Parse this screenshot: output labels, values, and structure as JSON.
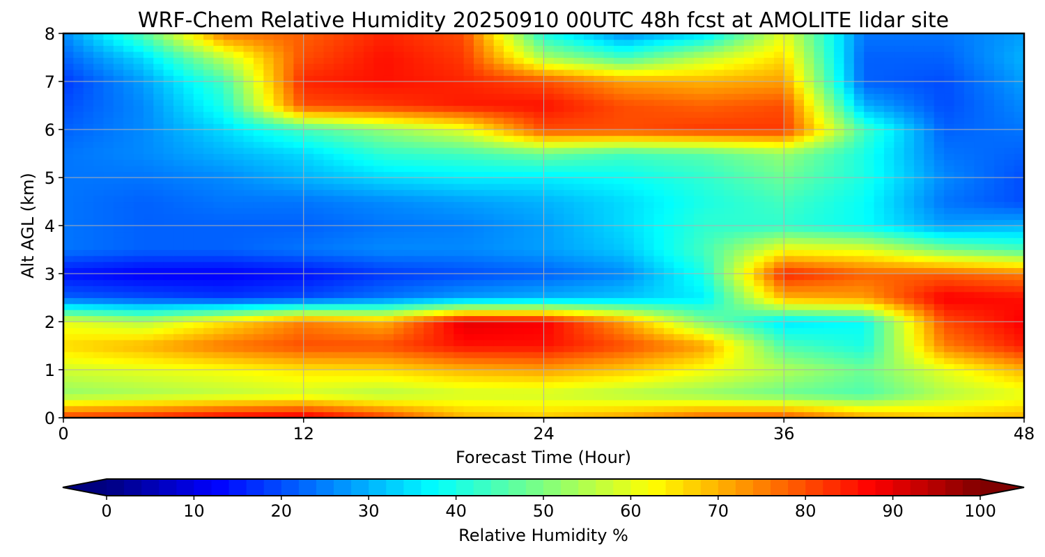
{
  "chart_data": {
    "type": "heatmap",
    "title": "WRF-Chem Relative Humidity 20250910 00UTC 48h fcst at AMOLITE lidar site",
    "xlabel": "Forecast Time (Hour)",
    "ylabel": "Alt AGL (km)",
    "xlim": [
      0,
      48
    ],
    "ylim": [
      0,
      8
    ],
    "x_ticks": [
      "0",
      "12",
      "24",
      "36",
      "48"
    ],
    "y_ticks": [
      "0",
      "1",
      "2",
      "3",
      "4",
      "5",
      "6",
      "7",
      "8"
    ],
    "grid": true,
    "colorbar": {
      "label": "Relative Humidity %",
      "range": [
        0,
        100
      ],
      "ticks": [
        "0",
        "10",
        "20",
        "30",
        "40",
        "50",
        "60",
        "70",
        "80",
        "90",
        "100"
      ],
      "colormap": "jet",
      "extend": "both"
    },
    "x": [
      0,
      4,
      8,
      12,
      16,
      20,
      24,
      28,
      32,
      36,
      40,
      44,
      48
    ],
    "y": [
      0,
      0.5,
      1,
      1.5,
      2,
      2.5,
      3,
      3.5,
      4,
      4.5,
      5,
      5.5,
      6,
      6.5,
      7,
      7.5,
      8
    ],
    "z": [
      [
        82,
        84,
        88,
        90,
        82,
        70,
        68,
        72,
        78,
        80,
        72,
        68,
        70
      ],
      [
        52,
        54,
        56,
        58,
        55,
        58,
        58,
        55,
        52,
        48,
        45,
        55,
        60
      ],
      [
        58,
        60,
        62,
        65,
        66,
        70,
        72,
        68,
        62,
        55,
        48,
        60,
        70
      ],
      [
        66,
        70,
        76,
        80,
        80,
        86,
        86,
        80,
        72,
        45,
        40,
        75,
        85
      ],
      [
        60,
        55,
        65,
        75,
        70,
        90,
        88,
        72,
        50,
        35,
        38,
        80,
        88
      ],
      [
        22,
        20,
        18,
        20,
        24,
        28,
        30,
        32,
        36,
        70,
        72,
        88,
        86
      ],
      [
        14,
        12,
        12,
        14,
        18,
        20,
        22,
        26,
        40,
        84,
        78,
        78,
        75
      ],
      [
        24,
        22,
        22,
        24,
        26,
        26,
        28,
        32,
        44,
        62,
        60,
        50,
        45
      ],
      [
        24,
        22,
        22,
        22,
        24,
        25,
        28,
        34,
        42,
        42,
        38,
        28,
        30
      ],
      [
        24,
        22,
        24,
        24,
        26,
        28,
        30,
        34,
        40,
        44,
        38,
        24,
        20
      ],
      [
        24,
        24,
        26,
        30,
        34,
        36,
        36,
        38,
        42,
        48,
        40,
        26,
        20
      ],
      [
        24,
        26,
        30,
        34,
        42,
        44,
        48,
        44,
        46,
        52,
        40,
        24,
        22
      ],
      [
        22,
        26,
        34,
        44,
        52,
        60,
        80,
        80,
        82,
        82,
        44,
        22,
        24
      ],
      [
        20,
        26,
        40,
        80,
        82,
        85,
        86,
        80,
        78,
        80,
        30,
        20,
        26
      ],
      [
        18,
        28,
        44,
        84,
        86,
        84,
        80,
        72,
        70,
        72,
        22,
        20,
        28
      ],
      [
        22,
        34,
        56,
        80,
        86,
        82,
        54,
        44,
        56,
        66,
        22,
        22,
        30
      ],
      [
        26,
        46,
        76,
        78,
        84,
        80,
        40,
        26,
        34,
        60,
        24,
        24,
        28
      ]
    ]
  }
}
